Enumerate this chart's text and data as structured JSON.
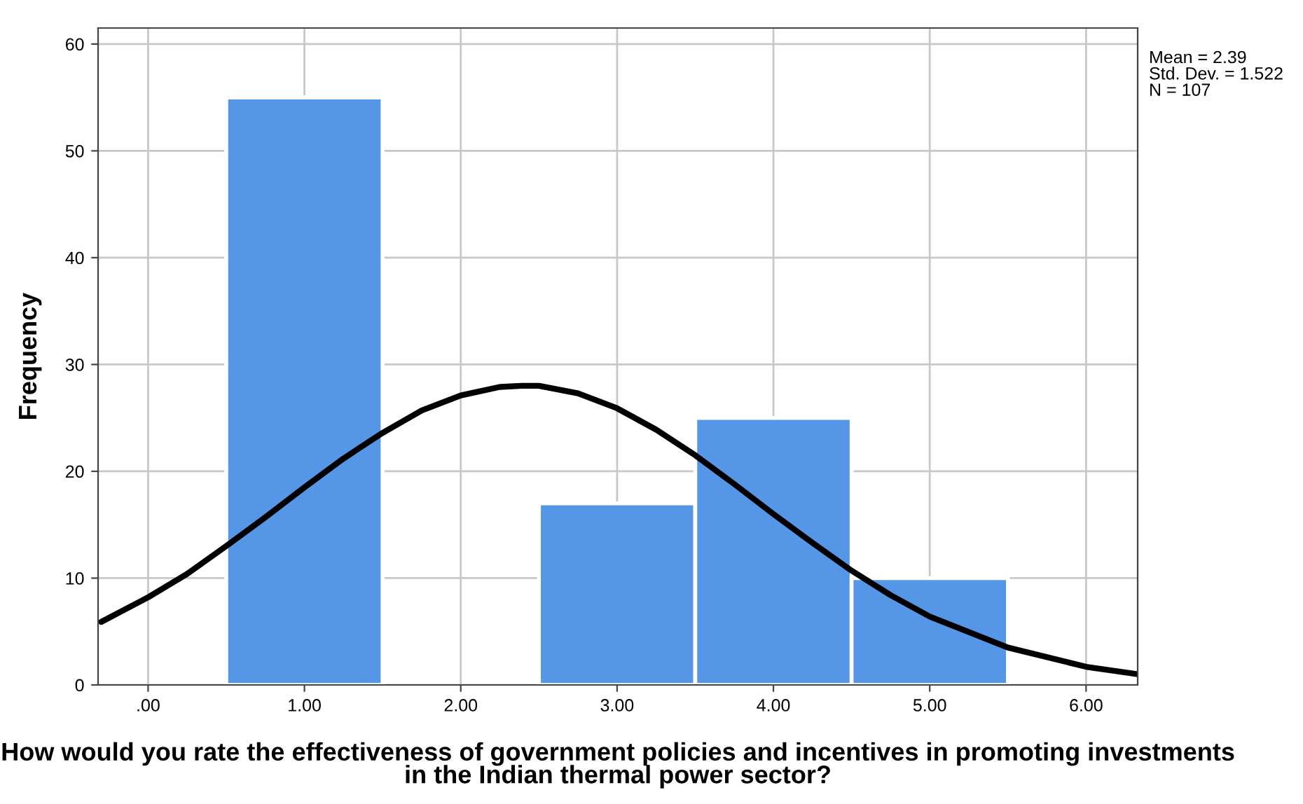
{
  "chart_data": {
    "type": "histogram",
    "xlabel": "How would you rate the effectiveness of government policies and incentives in promoting investments in the Indian thermal power sector?",
    "ylabel": "Frequency",
    "annotations": [
      "Mean = 2.39\nStd. Dev. = 1.522\nN = 107"
    ],
    "series": [
      {
        "bins": [
          0.5,
          1.5,
          2.5,
          3.5,
          4.5,
          5.5
        ],
        "values": [
          55,
          0,
          17,
          25,
          10
        ],
        "color": "#5596e6"
      },
      {
        "type": "line",
        "color": "#000000",
        "x": [
          -0.3,
          0,
          0.25,
          0.5,
          0.75,
          1.0,
          1.25,
          1.5,
          1.75,
          2.0,
          2.25,
          2.39,
          2.5,
          2.75,
          3.0,
          3.25,
          3.5,
          3.75,
          4.0,
          4.25,
          4.5,
          4.75,
          5.0,
          5.5,
          6.0,
          6.33
        ],
        "values": [
          5.9,
          8.2,
          10.4,
          13.0,
          15.7,
          18.5,
          21.2,
          23.6,
          25.7,
          27.1,
          27.9,
          28.0,
          28.0,
          27.3,
          25.9,
          23.9,
          21.5,
          18.8,
          16.0,
          13.3,
          10.7,
          8.4,
          6.4,
          3.5,
          1.7,
          1.0
        ]
      }
    ],
    "xlim": [
      -0.32,
      6.33
    ],
    "ylim": [
      0,
      61.5
    ],
    "xticks": [
      {
        "value": 0,
        "label": ".00"
      },
      {
        "value": 1,
        "label": "1.00"
      },
      {
        "value": 2,
        "label": "2.00"
      },
      {
        "value": 3,
        "label": "3.00"
      },
      {
        "value": 4,
        "label": "4.00"
      },
      {
        "value": 5,
        "label": "5.00"
      },
      {
        "value": 6,
        "label": "6.00"
      }
    ],
    "yticks": [
      0,
      10,
      20,
      30,
      40,
      50,
      60
    ],
    "grid": true,
    "line_style": "solid"
  }
}
